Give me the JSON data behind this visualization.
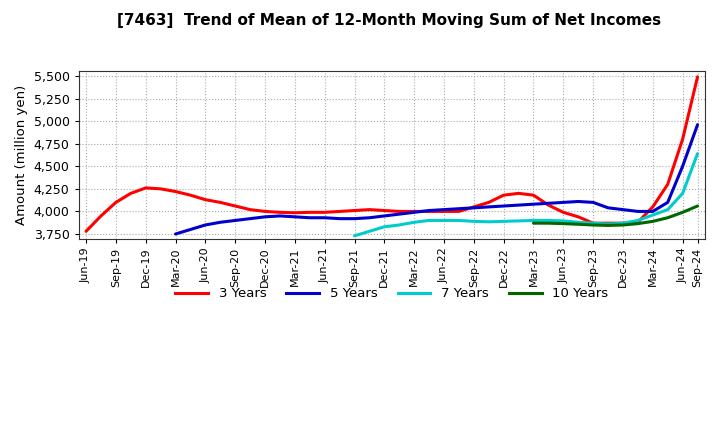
{
  "title": "[7463]  Trend of Mean of 12-Month Moving Sum of Net Incomes",
  "ylabel": "Amount (million yen)",
  "ylim": [
    3700,
    5550
  ],
  "yticks": [
    3750,
    4000,
    4250,
    4500,
    4750,
    5000,
    5250,
    5500
  ],
  "background_color": "#ffffff",
  "grid_color": "#aaaaaa",
  "series": {
    "3 Years": {
      "color": "#ff0000",
      "x_indices": [
        0,
        1,
        2,
        3,
        4,
        5,
        6,
        7,
        8,
        9,
        10,
        11,
        12,
        13,
        14,
        15,
        16,
        17,
        18,
        19,
        20,
        21,
        22,
        23,
        24,
        25,
        26,
        27,
        28,
        29,
        30,
        31,
        32,
        33,
        34,
        35,
        36,
        37,
        38,
        39,
        40,
        41
      ],
      "values": [
        3780,
        3950,
        4100,
        4200,
        4260,
        4250,
        4220,
        4180,
        4130,
        4100,
        4060,
        4020,
        4000,
        3990,
        3985,
        3990,
        3990,
        4000,
        4010,
        4020,
        4010,
        4000,
        4000,
        4000,
        4000,
        4000,
        4050,
        4100,
        4180,
        4200,
        4180,
        4070,
        3990,
        3940,
        3870,
        3870,
        3870,
        3880,
        4050,
        4300,
        4800,
        5490
      ]
    },
    "5 Years": {
      "color": "#0000cc",
      "x_indices": [
        6,
        7,
        8,
        9,
        10,
        11,
        12,
        13,
        14,
        15,
        16,
        17,
        18,
        19,
        20,
        21,
        22,
        23,
        24,
        25,
        26,
        27,
        28,
        29,
        30,
        31,
        32,
        33,
        34,
        35,
        36,
        37,
        38,
        39,
        40,
        41
      ],
      "values": [
        3750,
        3800,
        3850,
        3880,
        3900,
        3920,
        3940,
        3950,
        3940,
        3930,
        3930,
        3920,
        3920,
        3930,
        3950,
        3970,
        3990,
        4010,
        4020,
        4030,
        4040,
        4050,
        4060,
        4070,
        4080,
        4090,
        4100,
        4110,
        4100,
        4040,
        4020,
        4000,
        4000,
        4100,
        4500,
        4960
      ]
    },
    "7 Years": {
      "color": "#00cccc",
      "x_indices": [
        18,
        19,
        20,
        21,
        22,
        23,
        24,
        25,
        26,
        27,
        28,
        29,
        30,
        31,
        32,
        33,
        34,
        35,
        36,
        37,
        38,
        39,
        40,
        41
      ],
      "values": [
        3730,
        3780,
        3830,
        3850,
        3880,
        3900,
        3900,
        3900,
        3890,
        3885,
        3890,
        3895,
        3900,
        3900,
        3895,
        3880,
        3870,
        3860,
        3870,
        3900,
        3960,
        4020,
        4200,
        4640
      ]
    },
    "10 Years": {
      "color": "#006600",
      "x_indices": [
        30,
        31,
        32,
        33,
        34,
        35,
        36,
        37,
        38,
        39,
        40,
        41
      ],
      "values": [
        3870,
        3870,
        3865,
        3858,
        3850,
        3845,
        3850,
        3865,
        3890,
        3930,
        3990,
        4060
      ]
    }
  },
  "x_tick_positions": [
    0,
    2,
    4,
    6,
    8,
    10,
    12,
    14,
    16,
    18,
    20,
    22,
    24,
    26,
    28,
    30,
    32,
    34,
    36,
    38,
    40,
    41
  ],
  "x_labels": [
    "Jun-19",
    "Sep-19",
    "Dec-19",
    "Mar-20",
    "Jun-20",
    "Sep-20",
    "Dec-20",
    "Mar-21",
    "Jun-21",
    "Sep-21",
    "Dec-21",
    "Mar-22",
    "Jun-22",
    "Sep-22",
    "Dec-22",
    "Mar-23",
    "Jun-23",
    "Sep-23",
    "Dec-23",
    "Mar-24",
    "Jun-24",
    "Sep-24"
  ],
  "n_points": 42,
  "legend_labels": [
    "3 Years",
    "5 Years",
    "7 Years",
    "10 Years"
  ],
  "legend_colors": [
    "#ff0000",
    "#0000cc",
    "#00cccc",
    "#006600"
  ]
}
